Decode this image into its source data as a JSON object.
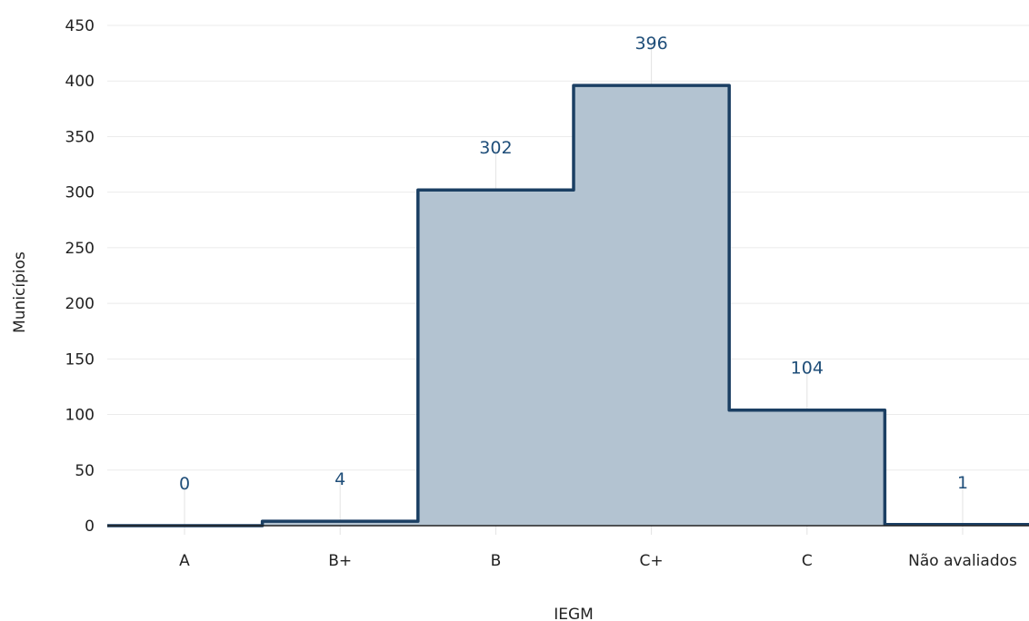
{
  "chart_data": {
    "type": "area",
    "categories": [
      "A",
      "B+",
      "B",
      "C+",
      "C",
      "Não avaliados"
    ],
    "values": [
      0,
      4,
      302,
      396,
      104,
      1
    ],
    "xlabel": "IEGM",
    "ylabel": "Municípios",
    "ylim": [
      0,
      450
    ],
    "yticks": [
      0,
      50,
      100,
      150,
      200,
      250,
      300,
      350,
      400,
      450
    ],
    "grid": true,
    "data_labels": [
      "0",
      "4",
      "302",
      "396",
      "104",
      "1"
    ],
    "colors": {
      "fill": "#b3c3d1",
      "line": "#1b3f63",
      "label": "#1f4e79",
      "grid": "#ebebeb"
    }
  }
}
